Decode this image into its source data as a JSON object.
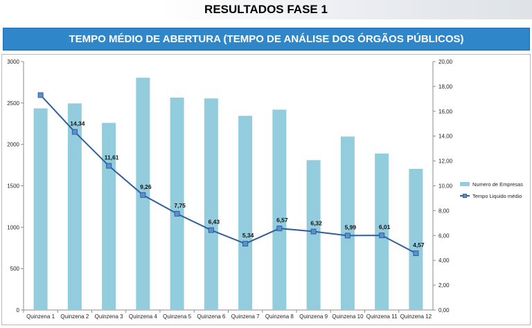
{
  "header": {
    "title": "RESULTADOS FASE 1"
  },
  "banner": {
    "title": "TEMPO MÉDIO DE ABERTURA (TEMPO DE ANÁLISE DOS ÓRGÃOS PÚBLICOS)"
  },
  "chart_data": {
    "type": "bar",
    "title": "",
    "xlabel": "",
    "ylabel": "",
    "categories": [
      "Quinzena 1",
      "Quinzena 2",
      "Quinzena 3",
      "Quinzena 4",
      "Quinzena 5",
      "Quinzena 6",
      "Quinzena 7",
      "Quinzena 8",
      "Quinzena 9",
      "Quinzena 10",
      "Quinzena 11",
      "Quinzena 12"
    ],
    "series": [
      {
        "name": "Numero de Empresas",
        "type": "bar",
        "axis": "left",
        "color": "#93cddd",
        "values": [
          2435,
          2495,
          2260,
          2805,
          2565,
          2555,
          2345,
          2420,
          1810,
          2095,
          1890,
          1705
        ]
      },
      {
        "name": "Tempo Liquido médio",
        "type": "line",
        "axis": "right",
        "color": "#2e5f9a",
        "values": [
          17.3,
          14.34,
          11.61,
          9.26,
          7.75,
          6.43,
          5.34,
          6.57,
          6.32,
          5.99,
          6.01,
          4.57
        ],
        "labels": [
          "",
          "14,34",
          "11,61",
          "9,26",
          "7,75",
          "6,43",
          "5,34",
          "6,57",
          "6,32",
          "5,99",
          "6,01",
          "4,57"
        ]
      }
    ],
    "ylim": [
      0,
      3000
    ],
    "y2lim": [
      0,
      20
    ],
    "y_ticks": [
      "0",
      "500",
      "1000",
      "1500",
      "2000",
      "2500",
      "3000"
    ],
    "y2_ticks": [
      "0,00",
      "2,00",
      "4,00",
      "6,00",
      "8,00",
      "10,00",
      "12,00",
      "14,00",
      "16,00",
      "18,00",
      "20,00"
    ],
    "grid": false,
    "legend": "right"
  }
}
